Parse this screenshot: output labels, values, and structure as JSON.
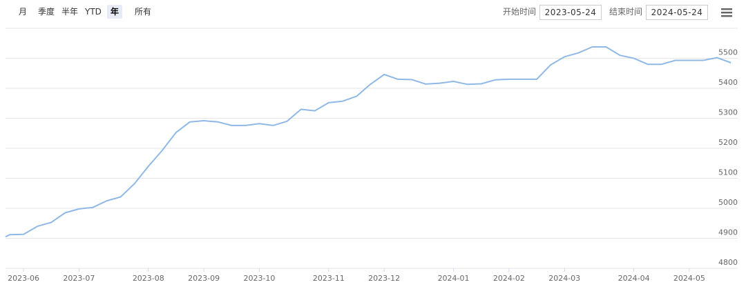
{
  "toolbar": {
    "buttons": [
      "月",
      "季度",
      "半年",
      "YTD",
      "年",
      "所有"
    ],
    "selected": 4,
    "start_label": "开始时间",
    "start_value": "2023-05-24",
    "end_label": "结束时间",
    "end_value": "2024-05-24"
  },
  "chart_data": {
    "type": "line",
    "categories": [
      null,
      null,
      "2023-06",
      null,
      null,
      null,
      "2023-07",
      null,
      null,
      null,
      null,
      "2023-08",
      null,
      null,
      null,
      "2023-09",
      null,
      null,
      null,
      "2023-10",
      null,
      null,
      null,
      null,
      "2023-11",
      null,
      null,
      null,
      "2023-12",
      null,
      null,
      null,
      null,
      "2024-01",
      null,
      null,
      null,
      "2024-02",
      null,
      null,
      null,
      "2024-03",
      null,
      null,
      null,
      null,
      "2024-04",
      null,
      null,
      null,
      "2024-05",
      null,
      null,
      null
    ],
    "series": [
      {
        "color": "#8fb8e6",
        "values": [
          4905,
          4912,
          4913,
          4940,
          4953,
          4985,
          4998,
          5003,
          5025,
          5038,
          5082,
          5140,
          5193,
          5253,
          5288,
          5292,
          5288,
          5276,
          5276,
          5282,
          5276,
          5290,
          5330,
          5325,
          5352,
          5357,
          5373,
          5413,
          5446,
          5430,
          5429,
          5414,
          5417,
          5423,
          5413,
          5415,
          5428,
          5430,
          5430,
          5430,
          5478,
          5505,
          5518,
          5538,
          5538,
          5510,
          5500,
          5480,
          5480,
          5493,
          5493,
          5493,
          5502,
          5485
        ]
      }
    ],
    "ylim": [
      4800,
      5600
    ],
    "yticks": [
      4800,
      4900,
      5000,
      5100,
      5200,
      5300,
      5400,
      5500
    ],
    "grid": true
  }
}
